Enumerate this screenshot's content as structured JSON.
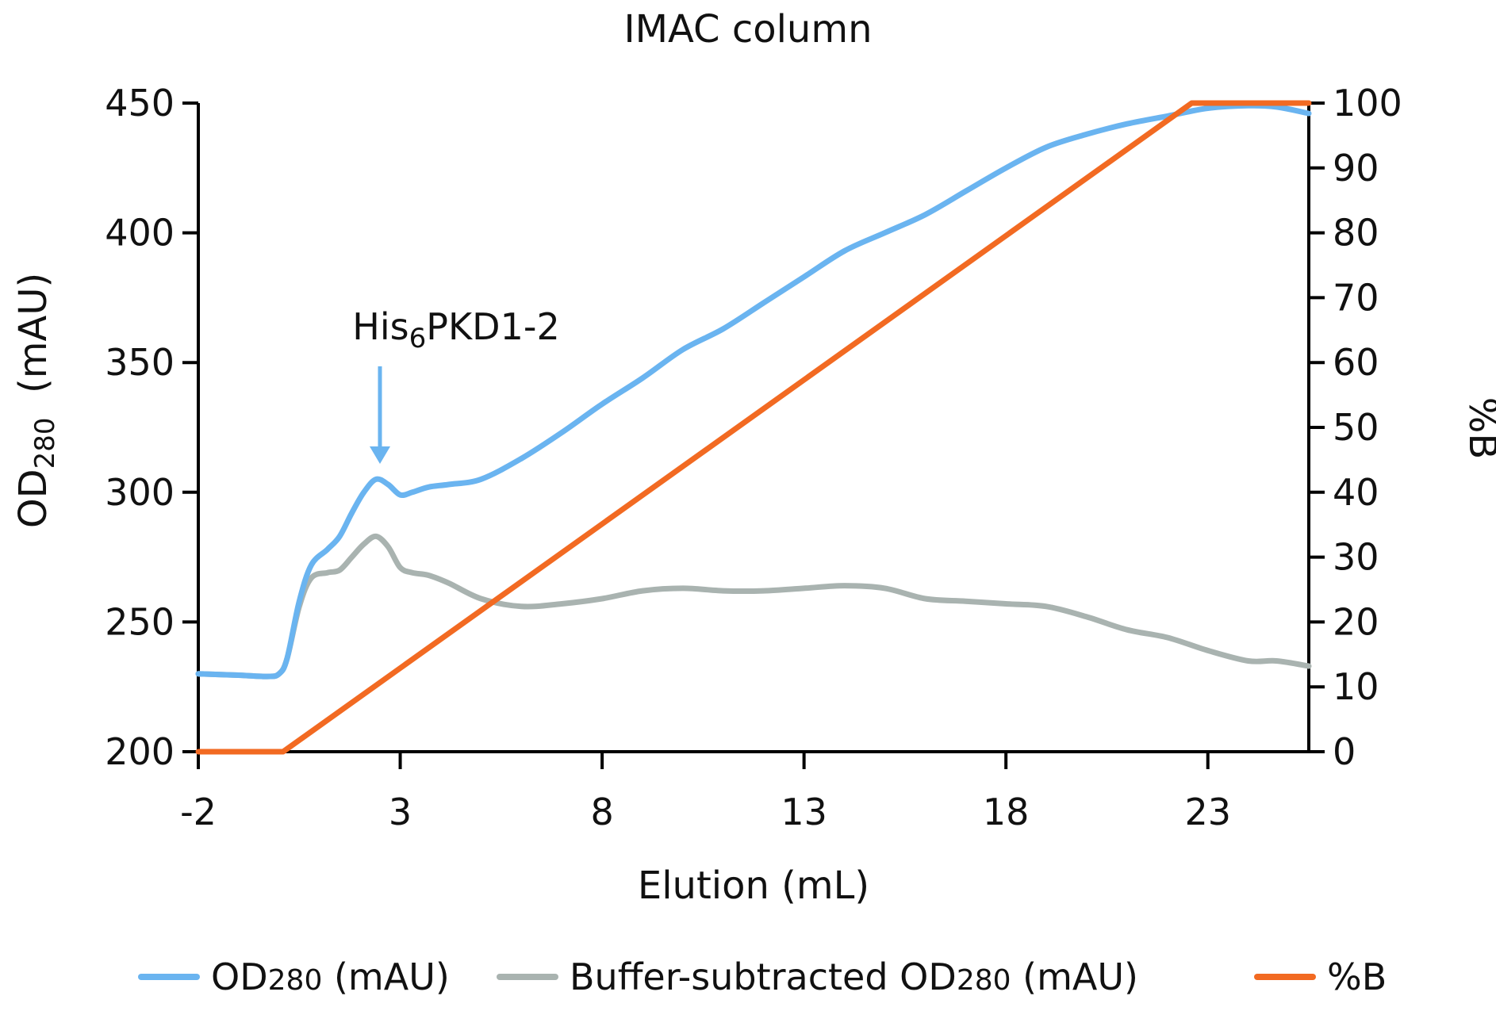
{
  "chart_data": {
    "type": "line",
    "title": "IMAC column",
    "xlabel": "Elution (mL)",
    "ylabel": {
      "main": "OD",
      "sub": "280",
      "tail": "  (mAU)"
    },
    "y2label": "%B",
    "xlim": [
      -2,
      25.5
    ],
    "ylim": [
      200,
      450
    ],
    "y2lim": [
      0,
      100
    ],
    "x_ticks": [
      -2,
      3,
      8,
      13,
      18,
      23
    ],
    "y_ticks": [
      200,
      250,
      300,
      350,
      400,
      450
    ],
    "y2_ticks": [
      0,
      10,
      20,
      30,
      40,
      50,
      60,
      70,
      80,
      90,
      100
    ],
    "annotation": {
      "text_main": "His",
      "text_sub": "6",
      "text_tail": "PKD1-2",
      "x": 2.4,
      "y": 305
    },
    "series": [
      {
        "name": "OD280 (mAU)",
        "legend": {
          "main": "OD",
          "sub": "280",
          "tail": " (mAU)"
        },
        "color": "#6ab4f0",
        "axis": "left",
        "x": [
          -2,
          -1,
          -0.3,
          0,
          0.2,
          0.5,
          0.8,
          1.2,
          1.5,
          1.8,
          2.1,
          2.4,
          2.7,
          3.0,
          3.3,
          3.7,
          4.2,
          5.0,
          6.0,
          7.0,
          8.0,
          9.0,
          10.0,
          11.0,
          12.0,
          13.0,
          14.0,
          15.0,
          16.0,
          17.0,
          18.0,
          19.0,
          20.0,
          21.0,
          22.0,
          23.0,
          24.0,
          24.7,
          25.5
        ],
        "y": [
          230,
          229.5,
          229,
          230,
          236,
          258,
          272,
          278,
          283,
          292,
          300,
          305,
          303,
          299,
          300,
          302,
          303,
          305,
          313,
          323,
          334,
          344,
          355,
          363,
          373,
          383,
          393,
          400,
          407,
          416,
          425,
          433,
          438,
          442,
          445,
          448,
          449,
          448.5,
          446
        ]
      },
      {
        "name": "Buffer-subtracted OD280 (mAU)",
        "legend": {
          "main": "Buffer-subtracted OD",
          "sub": "280",
          "tail": " (mAU)"
        },
        "color": "#a9b3b0",
        "axis": "left",
        "x": [
          -2,
          -1,
          -0.3,
          0,
          0.2,
          0.5,
          0.8,
          1.2,
          1.5,
          1.8,
          2.1,
          2.4,
          2.7,
          3.0,
          3.3,
          3.7,
          4.2,
          5.0,
          6.0,
          7.0,
          8.0,
          9.0,
          10.0,
          11.0,
          12.0,
          13.0,
          14.0,
          15.0,
          16.0,
          17.0,
          18.0,
          19.0,
          20.0,
          21.0,
          22.0,
          23.0,
          24.0,
          24.7,
          25.5
        ],
        "y": [
          230,
          229.5,
          229,
          230,
          236,
          256,
          267,
          269,
          270,
          275,
          280,
          283,
          279,
          271,
          269,
          268,
          265,
          259,
          256,
          257,
          259,
          262,
          263,
          262,
          262,
          263,
          264,
          263,
          259,
          258,
          257,
          256,
          252,
          247,
          244,
          239,
          235,
          235,
          233
        ]
      },
      {
        "name": "%B",
        "legend": {
          "main": "%B",
          "sub": "",
          "tail": ""
        },
        "color": "#f26a22",
        "axis": "right",
        "x": [
          -2,
          0.1,
          22.6,
          25.5
        ],
        "y": [
          0,
          0,
          100,
          100
        ]
      }
    ]
  }
}
